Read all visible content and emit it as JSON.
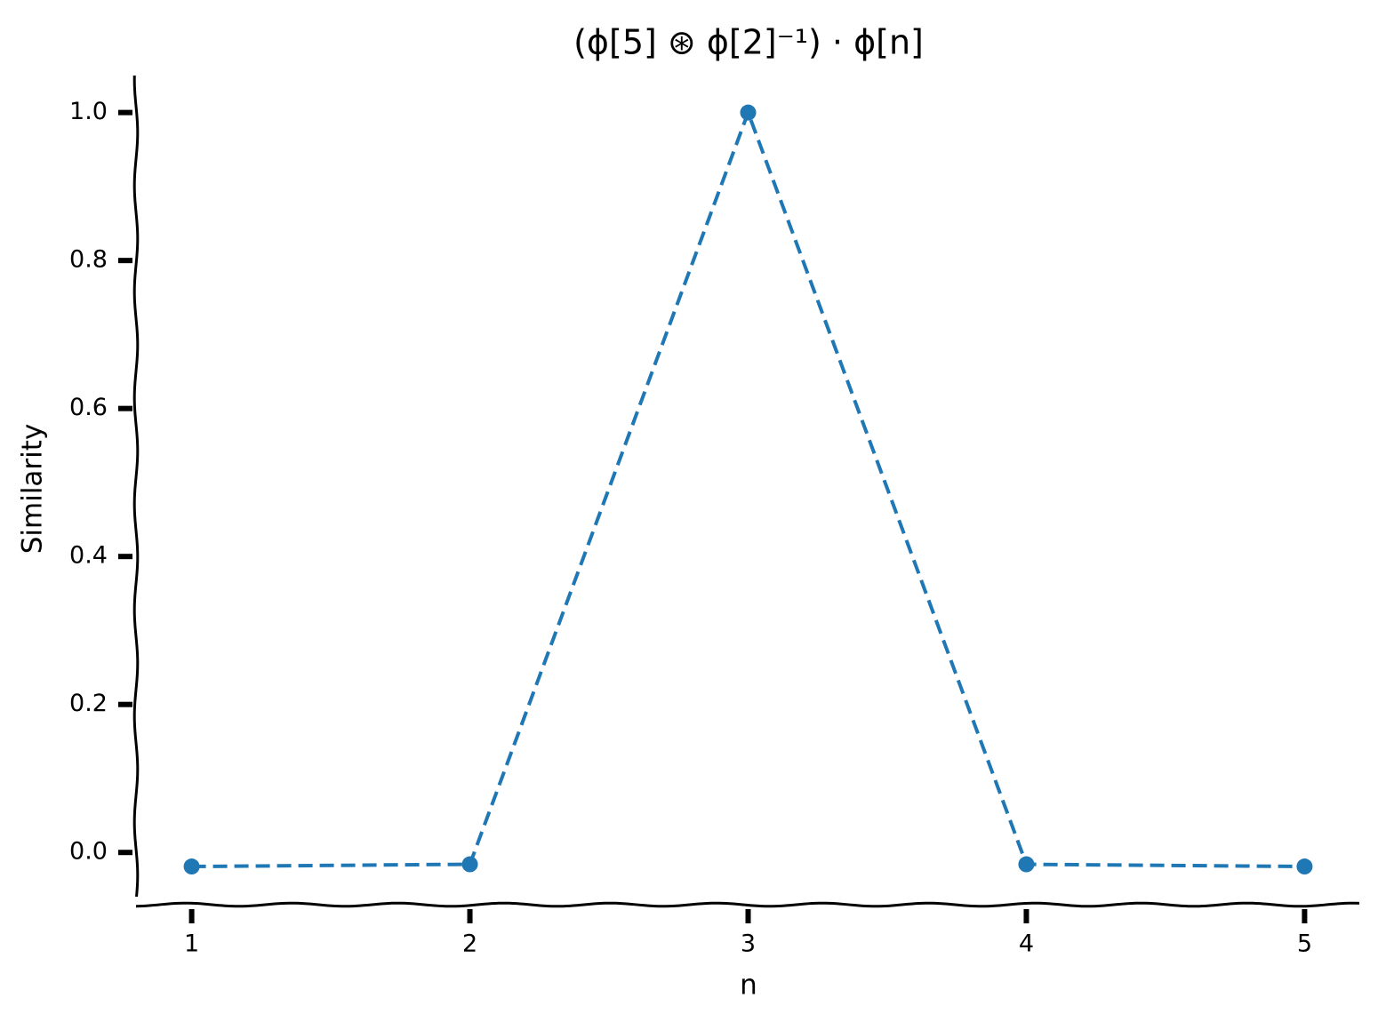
{
  "chart_data": {
    "type": "line",
    "title": "(ϕ[5] ⊛ ϕ[2]⁻¹) · ϕ[n]",
    "x_label": "n",
    "y_label": "Similarity",
    "x": [
      1,
      2,
      3,
      4,
      5
    ],
    "values": [
      -0.019,
      -0.016,
      1.0,
      -0.016,
      -0.019
    ],
    "color": "#1f77b4",
    "xlim": [
      0.8,
      5.2
    ],
    "xticks": [
      1,
      2,
      3,
      4,
      5
    ],
    "ylim": [
      -0.067,
      1.05
    ],
    "yticks": [
      {
        "value": 0,
        "label": "0.0"
      },
      0.2,
      0.4,
      0.6,
      0.8,
      {
        "value": 1,
        "label": "1.0"
      }
    ],
    "line_style": "dashed",
    "markers": true
  }
}
